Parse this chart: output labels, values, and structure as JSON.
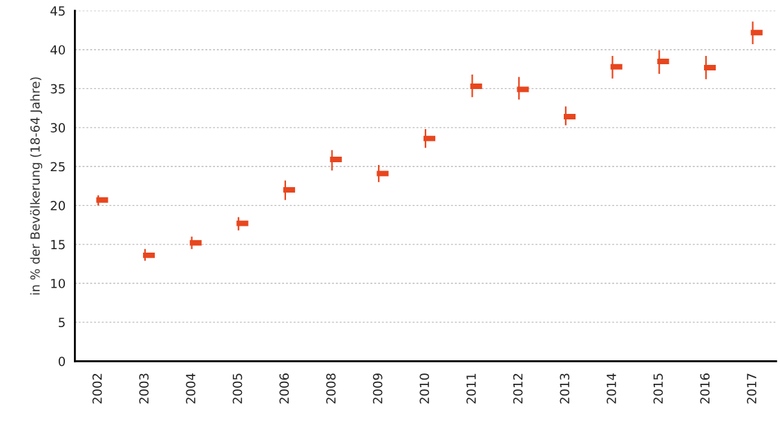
{
  "chart_data": {
    "type": "scatter",
    "ylabel": "in % der Bevölkerung (18-64 Jahre)",
    "categories": [
      "2002",
      "2003",
      "2004",
      "2005",
      "2006",
      "2008",
      "2009",
      "2010",
      "2011",
      "2012",
      "2013",
      "2014",
      "2015",
      "2016",
      "2017"
    ],
    "values": [
      20.7,
      13.6,
      15.2,
      17.7,
      22.0,
      25.9,
      24.1,
      28.6,
      35.3,
      34.9,
      31.4,
      37.8,
      38.5,
      37.7,
      42.2
    ],
    "errors": [
      [
        20.0,
        21.3
      ],
      [
        12.9,
        14.4
      ],
      [
        14.4,
        16.0
      ],
      [
        16.8,
        18.5
      ],
      [
        20.7,
        23.2
      ],
      [
        24.5,
        27.1
      ],
      [
        23.0,
        25.2
      ],
      [
        27.4,
        29.8
      ],
      [
        33.9,
        36.8
      ],
      [
        33.6,
        36.5
      ],
      [
        30.3,
        32.7
      ],
      [
        36.3,
        39.2
      ],
      [
        36.9,
        39.9
      ],
      [
        36.2,
        39.2
      ],
      [
        40.7,
        43.6
      ]
    ],
    "color": "#e8461e",
    "ylim": [
      0,
      45
    ],
    "yticks": [
      0,
      5,
      10,
      15,
      20,
      25,
      30,
      35,
      40,
      45
    ],
    "grid": "y"
  }
}
